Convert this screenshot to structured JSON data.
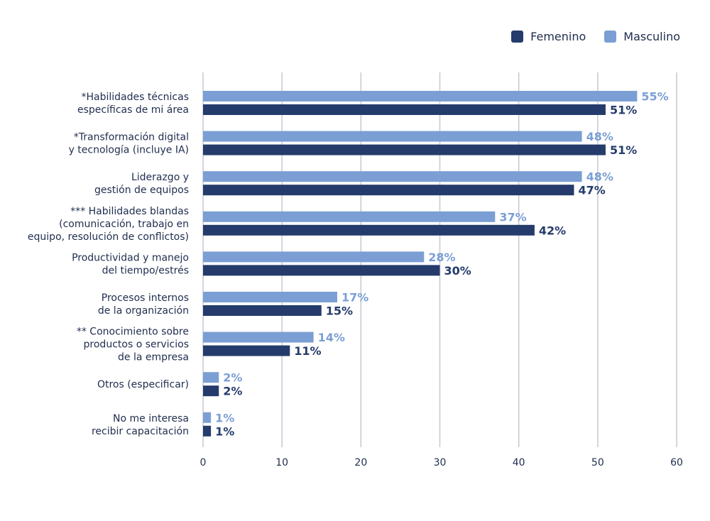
{
  "chart_data": {
    "type": "bar",
    "orientation": "horizontal",
    "categories": [
      [
        "*Habilidades técnicas",
        "específicas de mi área"
      ],
      [
        "*Transformación digital",
        "y tecnología (incluye IA)"
      ],
      [
        "Liderazgo y",
        "gestión de equipos"
      ],
      [
        "*** Habilidades blandas",
        "(comunicación, trabajo en",
        "equipo, resolución de conflictos)"
      ],
      [
        "Productividad y manejo",
        "del tiempo/estrés"
      ],
      [
        "Procesos internos",
        "de la organización"
      ],
      [
        "** Conocimiento sobre",
        "productos o servicios",
        "de la empresa"
      ],
      [
        "Otros (especificar)"
      ],
      [
        "No me interesa",
        "recibir capacitación"
      ]
    ],
    "series": [
      {
        "name": "Masculino",
        "color": "#7b9fd4",
        "values": [
          55,
          48,
          48,
          37,
          28,
          17,
          14,
          2,
          1
        ],
        "labels": [
          "55%",
          "48%",
          "48%",
          "37%",
          "28%",
          "17%",
          "14%",
          "2%",
          "1%"
        ]
      },
      {
        "name": "Femenino",
        "color": "#243b6b",
        "values": [
          51,
          51,
          47,
          42,
          30,
          15,
          11,
          2,
          1
        ],
        "labels": [
          "51%",
          "51%",
          "47%",
          "42%",
          "30%",
          "15%",
          "11%",
          "2%",
          "1%"
        ]
      }
    ],
    "xlim": [
      0,
      60
    ],
    "xticks": [
      "0",
      "10",
      "20",
      "30",
      "40",
      "50",
      "60"
    ],
    "grid": "vertical",
    "legend_position": "top-right",
    "title": "",
    "xlabel": "",
    "ylabel": ""
  },
  "legend": [
    {
      "label": "Femenino",
      "color": "#243b6b"
    },
    {
      "label": "Masculino",
      "color": "#7b9fd4"
    }
  ]
}
